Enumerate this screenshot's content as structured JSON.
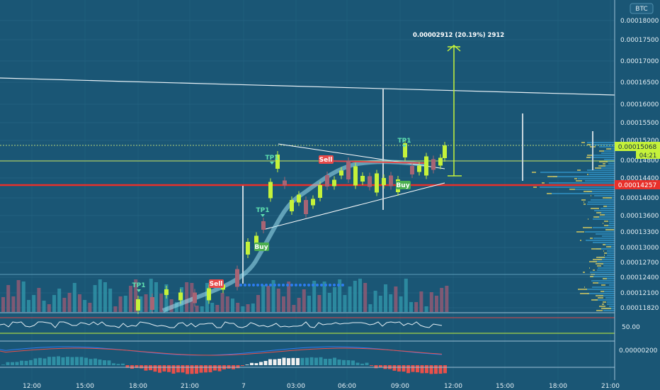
{
  "chart_data": {
    "type": "candlestick",
    "symbol_badge": "BTC",
    "projection_label": "0.00002912 (20.19%) 2912",
    "current_price_tag": "0.00015068",
    "countdown_tag": "04:21",
    "support_tag": "0.00014257",
    "y_ticks": [
      "0.00018000",
      "0.00017500",
      "0.00017000",
      "0.00016500",
      "0.00016000",
      "0.00015500",
      "0.00015200",
      "0.00014800",
      "0.00014400",
      "0.00014000",
      "0.00013600",
      "0.00013300",
      "0.00013000",
      "0.00012700",
      "0.00012400",
      "0.00012100",
      "0.00011820"
    ],
    "x_ticks": [
      "12:00",
      "15:00",
      "18:00",
      "21:00",
      "7",
      "03:00",
      "06:00",
      "09:00",
      "12:00",
      "15:00",
      "18:00",
      "21:00"
    ],
    "oscillator_label": "50.00",
    "macd_label": "0.00000200",
    "signals": [
      {
        "text": "Sell",
        "kind": "sell",
        "x": 305,
        "y": 403
      },
      {
        "text": "Sell",
        "kind": "sell",
        "x": 460,
        "y": 228
      },
      {
        "text": "Buy",
        "kind": "buy",
        "x": 369,
        "y": 351
      },
      {
        "text": "Buy",
        "kind": "buy",
        "x": 569,
        "y": 264
      },
      {
        "text": "TP1",
        "kind": "tp",
        "x": 196,
        "y": 405
      },
      {
        "text": "TP1",
        "kind": "tp",
        "x": 371,
        "y": 299
      },
      {
        "text": "TP1",
        "kind": "tp",
        "x": 384,
        "y": 225
      },
      {
        "text": "TP1",
        "kind": "tp",
        "x": 571,
        "y": 201
      }
    ],
    "price_range": [
      0.0001182,
      0.00018
    ],
    "grid": true
  }
}
